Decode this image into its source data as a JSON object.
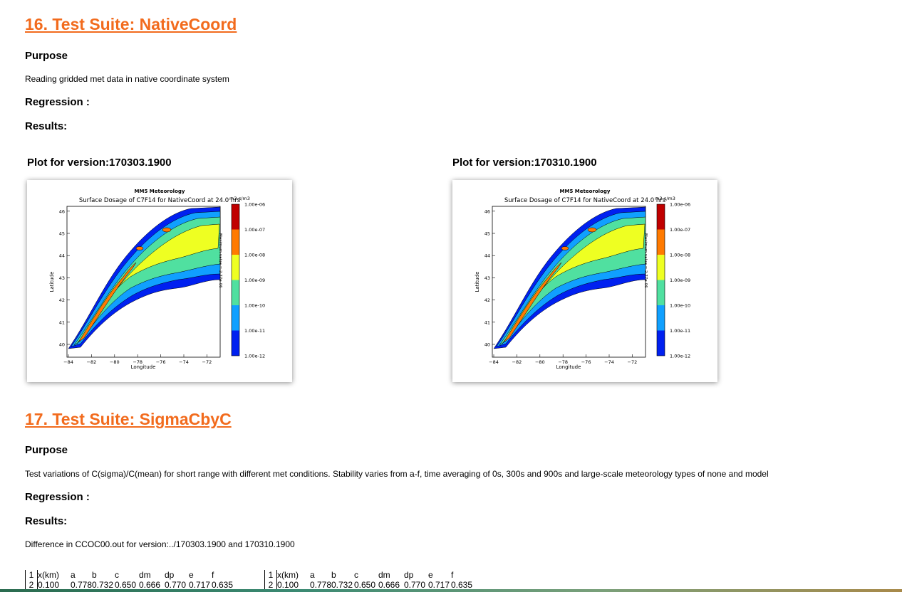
{
  "section16": {
    "heading": "16. Test Suite: NativeCoord",
    "purpose_label": "Purpose",
    "purpose_text": "Reading gridded met data in native coordinate system",
    "regression_label": "Regression :",
    "results_label": "Results:",
    "plots": [
      {
        "caption": "Plot for version:170303.1900",
        "chart_data": {
          "type": "contour",
          "suptitle": "MM5 Meteorology",
          "title": "Surface Dosage of C7F14 for NativeCoord at 24.0 hrs",
          "xlabel": "Longitude",
          "ylabel": "Latitude",
          "xticks": [
            "−84",
            "−82",
            "−80",
            "−78",
            "−76",
            "−74",
            "−72"
          ],
          "yticks": [
            "40",
            "41",
            "42",
            "43",
            "44",
            "45",
            "46"
          ],
          "colorbar_unit": "m3-s/m3",
          "colorbar_side_label": "Maximum value = 2.77e-06",
          "levels": [
            "1.00e-06",
            "1.00e-07",
            "1.00e-08",
            "1.00e-09",
            "1.00e-10",
            "1.00e-11",
            "1.00e-12"
          ],
          "colors": [
            "#c00000",
            "#ff7a00",
            "#eeff22",
            "#50e0a0",
            "#10a0ff",
            "#0020f0"
          ]
        }
      },
      {
        "caption": "Plot for version:170310.1900",
        "chart_data": {
          "type": "contour",
          "suptitle": "MM5 Meteorology",
          "title": "Surface Dosage of C7F14 for NativeCoord at 24.0 hrs",
          "xlabel": "Longitude",
          "ylabel": "Latitude",
          "xticks": [
            "−84",
            "−82",
            "−80",
            "−78",
            "−76",
            "−74",
            "−72"
          ],
          "yticks": [
            "40",
            "41",
            "42",
            "43",
            "44",
            "45",
            "46"
          ],
          "colorbar_unit": "m3-s/m3",
          "colorbar_side_label": "Maximum value = 2.77e-06",
          "levels": [
            "1.00e-06",
            "1.00e-07",
            "1.00e-08",
            "1.00e-09",
            "1.00e-10",
            "1.00e-11",
            "1.00e-12"
          ],
          "colors": [
            "#c00000",
            "#ff7a00",
            "#eeff22",
            "#50e0a0",
            "#10a0ff",
            "#0020f0"
          ]
        }
      }
    ]
  },
  "section17": {
    "heading": "17. Test Suite: SigmaCbyC",
    "purpose_label": "Purpose",
    "purpose_text": "Test variations of C(sigma)/C(mean) for short range with different met conditions. Stability varies from a-f, time averaging of 0s, 300s and 900s and large-scale meteorology types of none and model",
    "regression_label": "Regression :",
    "results_label": "Results:",
    "difference_text": "Difference in CCOC00.out for version:../170303.1900 and 170310.1900",
    "table_left": {
      "header": [
        "1",
        "x(km)",
        "a",
        "b",
        "c",
        "dm",
        "dp",
        "e",
        "f"
      ],
      "row1": [
        "2",
        "0.100",
        "0.778",
        "0.732",
        "0.650",
        "0.666",
        "0.770",
        "0.717",
        "0.635"
      ]
    },
    "table_right": {
      "header": [
        "1",
        "x(km)",
        "a",
        "b",
        "c",
        "dm",
        "dp",
        "e",
        "f"
      ],
      "row1": [
        "2",
        "0.100",
        "0.778",
        "0.732",
        "0.650",
        "0.666",
        "0.770",
        "0.717",
        "0.635"
      ]
    }
  }
}
